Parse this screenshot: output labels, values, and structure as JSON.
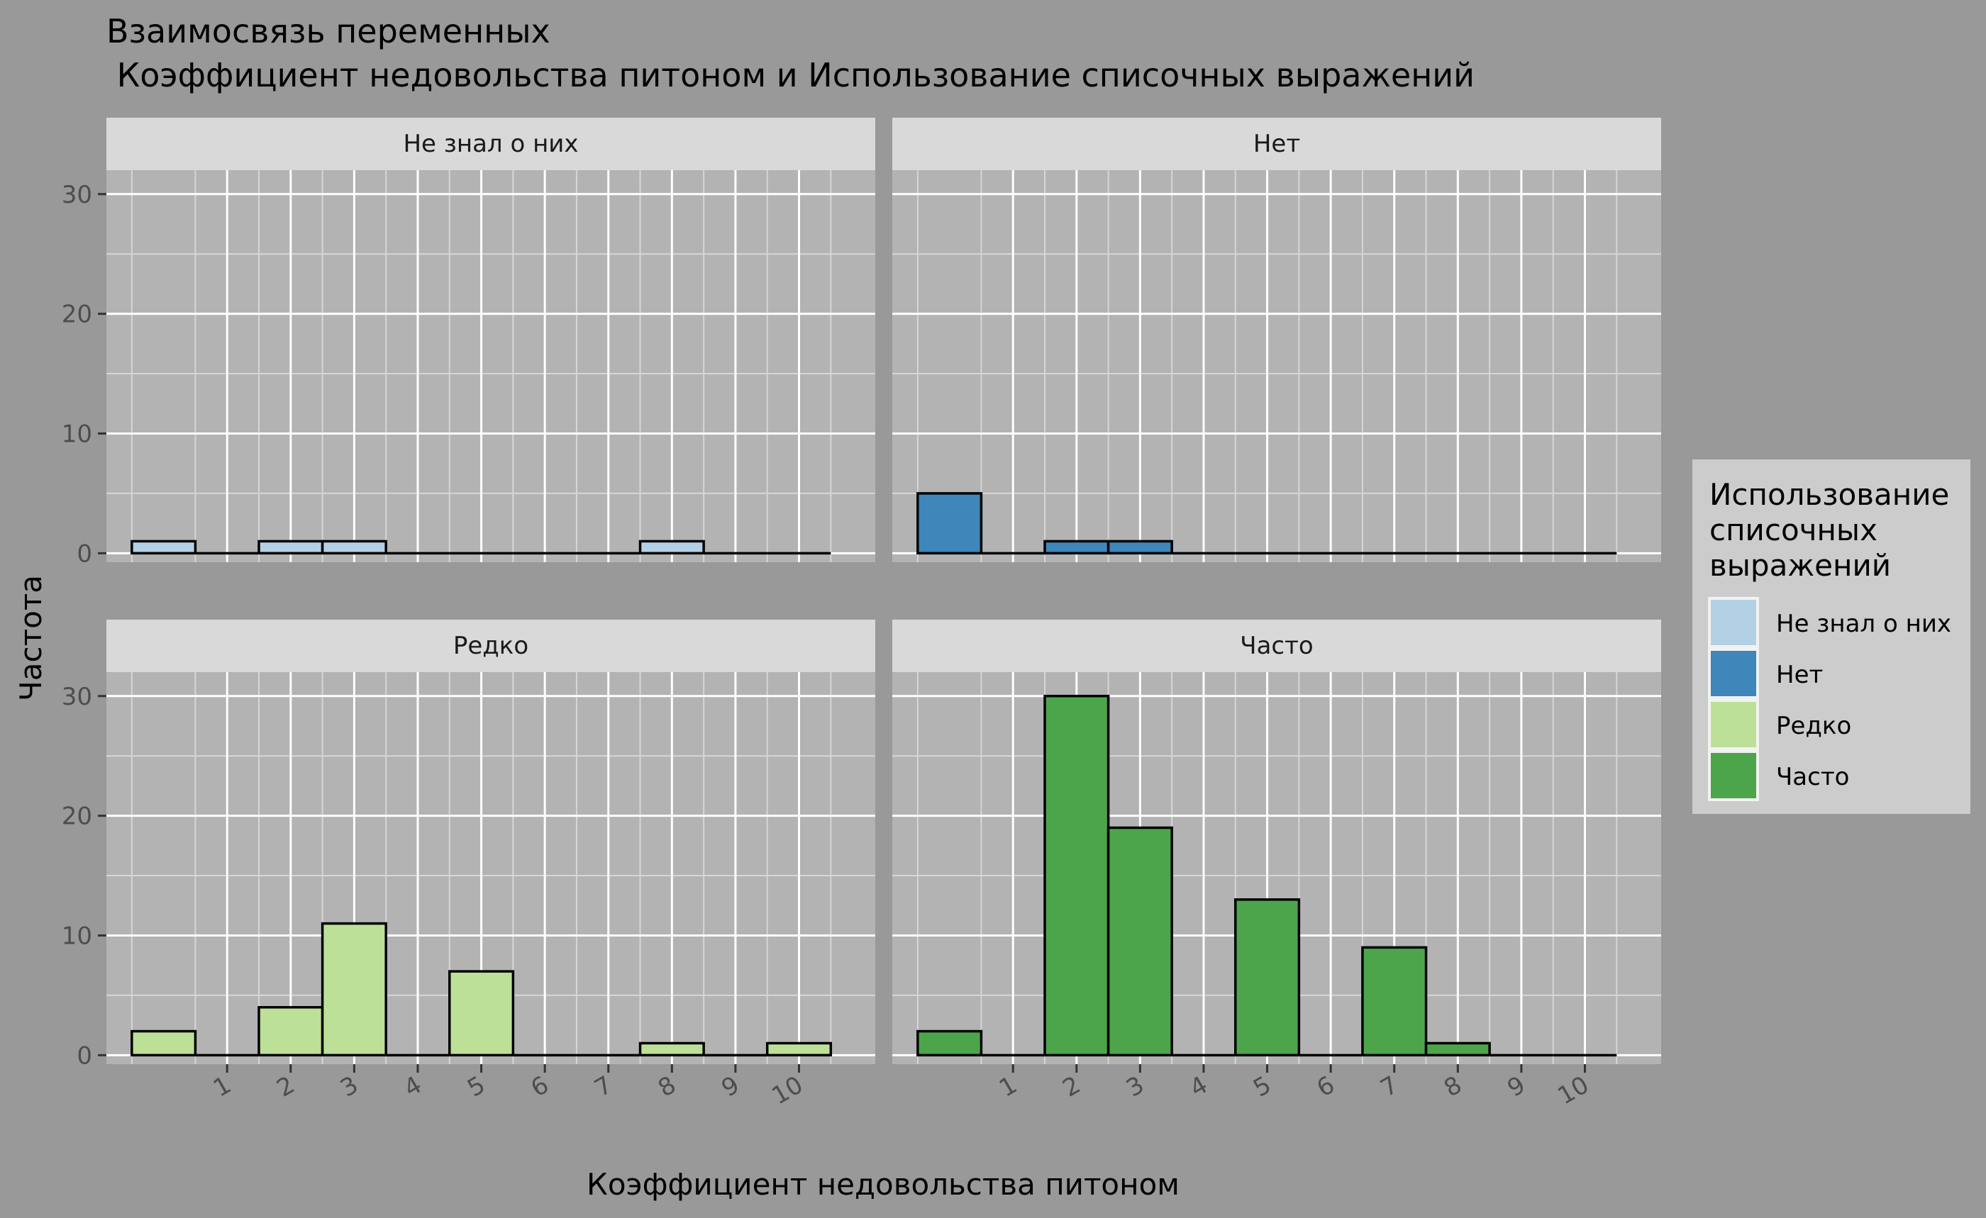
{
  "chart_data": {
    "type": "bar",
    "title_line1": "Взаимосвязь переменных",
    "title_line2": " Коэффициент недовольства питоном и Использование списочных выражений",
    "xlabel": "Коэффициент недовольства питоном",
    "ylabel": "Частота",
    "ylim": [
      0,
      32
    ],
    "y_ticks": [
      0,
      10,
      20,
      30
    ],
    "x_ticks": [
      "1",
      "2",
      "3",
      "4",
      "5",
      "6",
      "7",
      "8",
      "9",
      "10"
    ],
    "categories": [
      "0",
      "1",
      "2",
      "3",
      "4",
      "5",
      "6",
      "7",
      "8",
      "9",
      "10"
    ],
    "legend": {
      "title_lines": [
        "Использование",
        "списочных",
        "выражений"
      ],
      "position": "right"
    },
    "grid": true,
    "series": [
      {
        "name": "Не знал о них",
        "color": "#b3d0e5",
        "values": [
          1,
          0,
          1,
          1,
          0,
          0,
          0,
          0,
          1,
          0,
          0
        ]
      },
      {
        "name": "Нет",
        "color": "#3f86bb",
        "values": [
          5,
          0,
          1,
          1,
          0,
          0,
          0,
          0,
          0,
          0,
          0
        ]
      },
      {
        "name": "Редко",
        "color": "#bce098",
        "values": [
          2,
          0,
          4,
          11,
          0,
          7,
          0,
          0,
          1,
          0,
          1
        ]
      },
      {
        "name": "Часто",
        "color": "#4da54b",
        "values": [
          2,
          0,
          30,
          19,
          0,
          13,
          0,
          9,
          1,
          0,
          0
        ]
      }
    ]
  }
}
